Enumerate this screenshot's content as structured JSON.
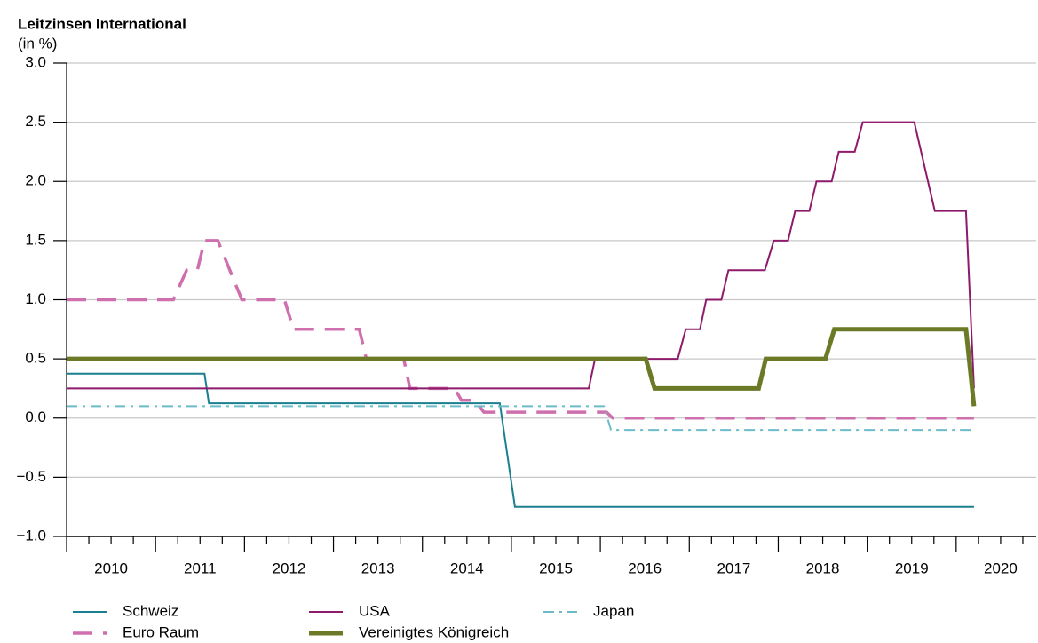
{
  "chart_data": {
    "type": "line",
    "title": "Leitzinsen International",
    "subtitle": "(in %)",
    "xlim": [
      2010,
      2020.9
    ],
    "xticks": [
      2010,
      2011,
      2012,
      2013,
      2014,
      2015,
      2016,
      2017,
      2018,
      2019,
      2020
    ],
    "ylim": [
      -1,
      3
    ],
    "yticks": [
      {
        "value": -1,
        "label": "−1.0"
      },
      {
        "value": -0.5,
        "label": "−0.5"
      },
      {
        "value": 0,
        "label": "0.0"
      },
      {
        "value": 0.5,
        "label": "0.5"
      },
      {
        "value": 1,
        "label": "1.0"
      },
      {
        "value": 1.5,
        "label": "1.5"
      },
      {
        "value": 2,
        "label": "2.0"
      },
      {
        "value": 2.5,
        "label": "2.5"
      },
      {
        "value": 3,
        "label": "3.0"
      }
    ],
    "grid": true,
    "series": [
      {
        "name": "Schweiz",
        "color": "#1a7f8e",
        "dash": "solid",
        "width": 2,
        "x": [
          2010,
          2011.55,
          2011.6,
          2014.87,
          2015.04,
          2020.2
        ],
        "values": [
          0.375,
          0.375,
          0.125,
          0.125,
          -0.75,
          -0.75
        ]
      },
      {
        "name": "Euro Raum",
        "color": "#cf6fad",
        "dash": "dashed",
        "width": 3.5,
        "x": [
          2010,
          2011.2,
          2011.35,
          2011.47,
          2011.55,
          2011.7,
          2011.97,
          2012.45,
          2012.55,
          2013.29,
          2013.37,
          2013.79,
          2013.86,
          2014.36,
          2014.44,
          2014.59,
          2014.69,
          2016.07,
          2016.14,
          2020.2
        ],
        "values": [
          1,
          1,
          1.25,
          1.25,
          1.5,
          1.5,
          1,
          1,
          0.75,
          0.75,
          0.5,
          0.5,
          0.25,
          0.25,
          0.15,
          0.15,
          0.05,
          0.05,
          0,
          0
        ]
      },
      {
        "name": "USA",
        "color": "#8e1a6b",
        "dash": "solid",
        "width": 2,
        "x": [
          2010,
          2015.87,
          2015.94,
          2016.87,
          2016.96,
          2017.12,
          2017.19,
          2017.36,
          2017.44,
          2017.85,
          2017.95,
          2018.11,
          2018.19,
          2018.35,
          2018.43,
          2018.6,
          2018.68,
          2018.86,
          2018.95,
          2019.53,
          2019.76,
          2020.11,
          2020.2
        ],
        "values": [
          0.25,
          0.25,
          0.5,
          0.5,
          0.75,
          0.75,
          1,
          1,
          1.25,
          1.25,
          1.5,
          1.5,
          1.75,
          1.75,
          2,
          2,
          2.25,
          2.25,
          2.5,
          2.5,
          1.75,
          1.75,
          0.25
        ]
      },
      {
        "name": "Vereinigtes Königreich",
        "color": "#6b7a26",
        "dash": "solid",
        "width": 5,
        "x": [
          2010,
          2016.51,
          2016.61,
          2017.78,
          2017.86,
          2018.53,
          2018.63,
          2020.11,
          2020.2
        ],
        "values": [
          0.5,
          0.5,
          0.25,
          0.25,
          0.5,
          0.5,
          0.75,
          0.75,
          0.1
        ]
      },
      {
        "name": "Japan",
        "color": "#6bbcc8",
        "dash": "dashdot",
        "width": 2,
        "x": [
          2010,
          2016.04,
          2016.12,
          2020.2
        ],
        "values": [
          0.1,
          0.1,
          -0.1,
          -0.1
        ]
      }
    ]
  }
}
